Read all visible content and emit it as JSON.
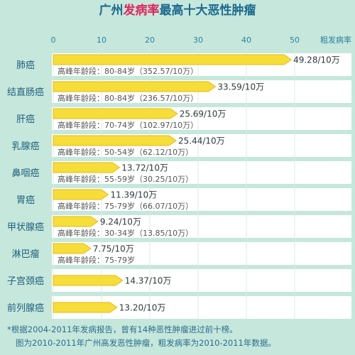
{
  "title": {
    "part1": "广州",
    "part2": "发病率",
    "part3": "最高十大恶性肿瘤",
    "colors": {
      "main": "#1b6a8e",
      "highlight": "#e0245e"
    }
  },
  "chart_data": {
    "type": "bar",
    "orientation": "horizontal",
    "xlabel": "粗发病率",
    "xlim": [
      0,
      50
    ],
    "xticks": [
      0,
      10,
      20,
      30,
      40,
      50
    ],
    "value_unit": "/10万",
    "categories": [
      "肺癌",
      "结直肠癌",
      "肝癌",
      "乳腺癌",
      "鼻咽癌",
      "胃癌",
      "甲状腺癌",
      "淋巴瘤",
      "子宫颈癌",
      "前列腺癌"
    ],
    "values": [
      49.28,
      33.59,
      25.69,
      25.44,
      13.72,
      11.39,
      9.24,
      7.75,
      14.37,
      13.2
    ],
    "value_labels": [
      "49.28/10万",
      "33.59/10万",
      "25.69/10万",
      "25.44/10万",
      "13.72/10万",
      "11.39/10万",
      "9.24/10万",
      "7.75/10万",
      "14.37/10万",
      "13.20/10万"
    ],
    "peak_age_notes": [
      "高峰年龄段：80-84岁（352.57/10万）",
      "高峰年龄段：80-84岁（236.57/10万）",
      "高峰年龄段：70-74岁（102.97/10万）",
      "高峰年龄段：50-54岁（62.12/10万）",
      "高峰年龄段：55-59岁（30.25/10万）",
      "高峰年龄段：75-79岁（66.07/10万）",
      "高峰年龄段：30-34岁（13.85/10万）",
      "高峰年龄段：75-79岁",
      "",
      ""
    ],
    "grid": true,
    "colors": {
      "bar": "#f6dd3a",
      "bar_edge": "#e8b90f",
      "row_bg": "#ffffff",
      "category_text": "#1e5f7c",
      "tick_text": "#2e7f9b",
      "value_text": "#2e3a3a",
      "note_text": "#555555",
      "grid": "#d8ece6"
    }
  },
  "footnote": {
    "line1": "*根据2004-2011年发病报告，曾有14种恶性肿瘤进过前十榜。",
    "line2": "图为2010-2011年广州高发恶性肿瘤，粗发病率为2010-2011年数据。"
  }
}
